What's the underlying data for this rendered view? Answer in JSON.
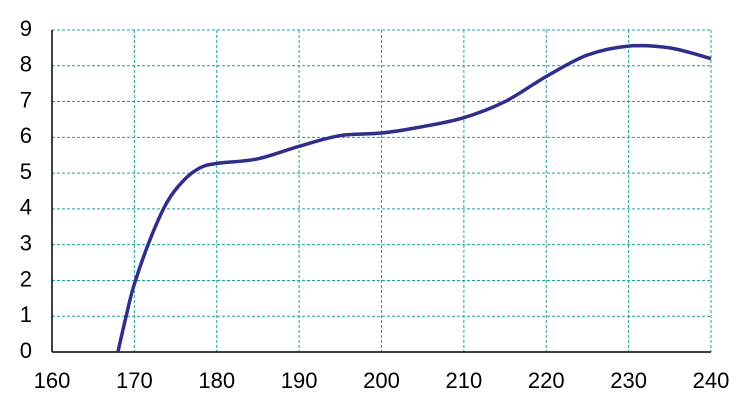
{
  "chart_data": {
    "type": "line",
    "x": [
      168,
      169,
      170,
      172,
      174,
      176,
      178,
      180,
      185,
      190,
      195,
      200,
      205,
      210,
      215,
      220,
      225,
      230,
      235,
      240
    ],
    "series": [
      {
        "color": "#2e2e8c",
        "values": [
          0,
          1.0,
          1.9,
          3.2,
          4.2,
          4.8,
          5.15,
          5.27,
          5.4,
          5.75,
          6.05,
          6.12,
          6.3,
          6.55,
          7.0,
          7.7,
          8.3,
          8.55,
          8.5,
          8.2
        ]
      }
    ],
    "xlim": [
      160,
      240
    ],
    "xticks": [
      160,
      170,
      180,
      190,
      200,
      210,
      220,
      230,
      240
    ],
    "ylim": [
      0,
      9
    ],
    "yticks": [
      0,
      1,
      2,
      3,
      4,
      5,
      6,
      7,
      8,
      9
    ],
    "grid": true
  }
}
